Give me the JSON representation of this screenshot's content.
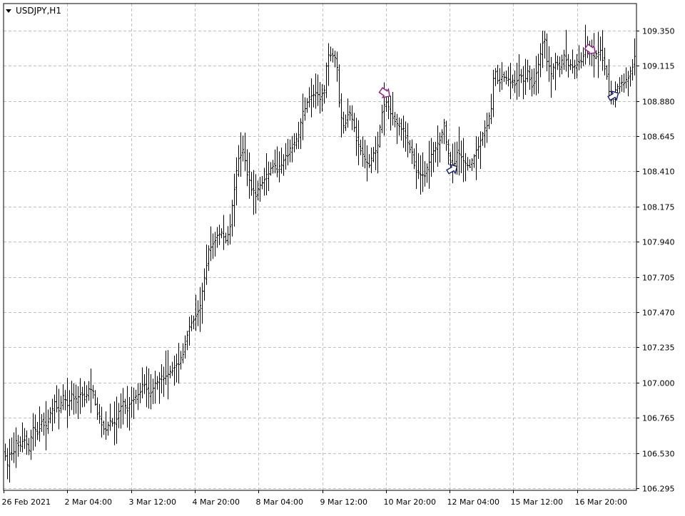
{
  "chart_data": {
    "type": "ohlc",
    "title": "USDJPY,H1",
    "symbol": "USDJPY",
    "timeframe": "H1",
    "grid": true,
    "colors": {
      "bars": "#000000",
      "grid": "#c0c0c0",
      "sell_arrow": "#9b1d88",
      "buy_arrow": "#1a237e",
      "background": "#ffffff"
    },
    "ylim": [
      106.295,
      109.47
    ],
    "y_ticks": [
      "109.350",
      "109.115",
      "108.880",
      "108.645",
      "108.410",
      "108.175",
      "107.940",
      "107.705",
      "107.470",
      "107.235",
      "107.000",
      "106.765",
      "106.530",
      "106.295"
    ],
    "x_ticks": [
      "26 Feb 2021",
      "2 Mar 04:00",
      "3 Mar 12:00",
      "4 Mar 20:00",
      "8 Mar 04:00",
      "9 Mar 12:00",
      "10 Mar 20:00",
      "12 Mar 04:00",
      "15 Mar 12:00",
      "16 Mar 20:00"
    ],
    "trace": [
      [
        0,
        106.6
      ],
      [
        6,
        106.52
      ],
      [
        10,
        106.45
      ],
      [
        14,
        106.55
      ],
      [
        18,
        106.5
      ],
      [
        22,
        106.6
      ],
      [
        28,
        106.58
      ],
      [
        34,
        106.63
      ],
      [
        40,
        106.55
      ],
      [
        46,
        106.7
      ],
      [
        52,
        106.66
      ],
      [
        58,
        106.75
      ],
      [
        64,
        106.7
      ],
      [
        70,
        106.8
      ],
      [
        76,
        106.86
      ],
      [
        82,
        106.82
      ],
      [
        88,
        106.9
      ],
      [
        94,
        106.85
      ],
      [
        100,
        106.92
      ],
      [
        106,
        106.88
      ],
      [
        112,
        106.93
      ],
      [
        118,
        106.9
      ],
      [
        124,
        106.95
      ],
      [
        130,
        106.93
      ],
      [
        136,
        106.8
      ],
      [
        142,
        106.72
      ],
      [
        148,
        106.68
      ],
      [
        154,
        106.75
      ],
      [
        160,
        106.72
      ],
      [
        166,
        106.8
      ],
      [
        172,
        106.86
      ],
      [
        178,
        106.82
      ],
      [
        184,
        106.88
      ],
      [
        190,
        106.9
      ],
      [
        196,
        106.95
      ],
      [
        202,
        107.0
      ],
      [
        208,
        106.92
      ],
      [
        214,
        106.97
      ],
      [
        220,
        107.0
      ],
      [
        226,
        107.03
      ],
      [
        232,
        107.05
      ],
      [
        238,
        107.08
      ],
      [
        244,
        107.1
      ],
      [
        250,
        107.13
      ],
      [
        256,
        107.2
      ],
      [
        262,
        107.33
      ],
      [
        268,
        107.4
      ],
      [
        274,
        107.45
      ],
      [
        280,
        107.5
      ],
      [
        286,
        107.7
      ],
      [
        292,
        107.88
      ],
      [
        298,
        107.93
      ],
      [
        304,
        107.98
      ],
      [
        310,
        108.0
      ],
      [
        316,
        107.95
      ],
      [
        322,
        108.05
      ],
      [
        328,
        108.3
      ],
      [
        334,
        108.5
      ],
      [
        340,
        108.55
      ],
      [
        346,
        108.4
      ],
      [
        352,
        108.3
      ],
      [
        358,
        108.25
      ],
      [
        364,
        108.32
      ],
      [
        370,
        108.35
      ],
      [
        376,
        108.4
      ],
      [
        382,
        108.45
      ],
      [
        388,
        108.42
      ],
      [
        394,
        108.45
      ],
      [
        400,
        108.5
      ],
      [
        406,
        108.55
      ],
      [
        412,
        108.6
      ],
      [
        418,
        108.65
      ],
      [
        424,
        108.8
      ],
      [
        430,
        108.88
      ],
      [
        436,
        108.92
      ],
      [
        442,
        108.92
      ],
      [
        448,
        108.9
      ],
      [
        454,
        108.95
      ],
      [
        458,
        109.15
      ],
      [
        462,
        109.2
      ],
      [
        468,
        109.18
      ],
      [
        472,
        109.1
      ],
      [
        476,
        108.8
      ],
      [
        482,
        108.7
      ],
      [
        488,
        108.82
      ],
      [
        494,
        108.75
      ],
      [
        500,
        108.6
      ],
      [
        506,
        108.55
      ],
      [
        510,
        108.48
      ],
      [
        516,
        108.45
      ],
      [
        522,
        108.52
      ],
      [
        528,
        108.55
      ],
      [
        534,
        108.78
      ],
      [
        540,
        108.88
      ],
      [
        546,
        108.82
      ],
      [
        552,
        108.75
      ],
      [
        558,
        108.72
      ],
      [
        564,
        108.7
      ],
      [
        570,
        108.6
      ],
      [
        576,
        108.55
      ],
      [
        582,
        108.42
      ],
      [
        588,
        108.4
      ],
      [
        594,
        108.38
      ],
      [
        600,
        108.45
      ],
      [
        606,
        108.55
      ],
      [
        612,
        108.58
      ],
      [
        618,
        108.65
      ],
      [
        622,
        108.72
      ],
      [
        626,
        108.55
      ],
      [
        630,
        108.48
      ],
      [
        636,
        108.45
      ],
      [
        640,
        108.55
      ],
      [
        646,
        108.5
      ],
      [
        652,
        108.45
      ],
      [
        658,
        108.45
      ],
      [
        664,
        108.5
      ],
      [
        670,
        108.58
      ],
      [
        676,
        108.65
      ],
      [
        682,
        108.72
      ],
      [
        688,
        108.82
      ],
      [
        692,
        109.1
      ],
      [
        698,
        109.0
      ],
      [
        704,
        109.05
      ],
      [
        710,
        109.02
      ],
      [
        716,
        109.0
      ],
      [
        722,
        109.0
      ],
      [
        728,
        109.05
      ],
      [
        734,
        109.02
      ],
      [
        740,
        109.08
      ],
      [
        746,
        108.95
      ],
      [
        752,
        109.1
      ],
      [
        758,
        109.2
      ],
      [
        762,
        109.33
      ],
      [
        766,
        109.15
      ],
      [
        772,
        109.05
      ],
      [
        778,
        109.15
      ],
      [
        784,
        109.1
      ],
      [
        790,
        109.18
      ],
      [
        796,
        109.12
      ],
      [
        802,
        109.1
      ],
      [
        808,
        109.13
      ],
      [
        814,
        109.15
      ],
      [
        820,
        109.22
      ],
      [
        826,
        109.2
      ],
      [
        832,
        109.18
      ],
      [
        836,
        109.18
      ],
      [
        840,
        109.22
      ],
      [
        846,
        109.12
      ],
      [
        850,
        109.05
      ],
      [
        854,
        108.92
      ],
      [
        858,
        108.88
      ],
      [
        862,
        108.95
      ],
      [
        866,
        108.98
      ],
      [
        872,
        109.0
      ],
      [
        878,
        109.02
      ],
      [
        884,
        109.08
      ],
      [
        890,
        109.18
      ]
    ],
    "signals": [
      {
        "type": "sell",
        "x": 540,
        "y": 108.92
      },
      {
        "type": "buy",
        "x": 634,
        "y": 108.43
      },
      {
        "type": "sell",
        "x": 828,
        "y": 109.21
      },
      {
        "type": "buy",
        "x": 860,
        "y": 108.92
      }
    ]
  }
}
